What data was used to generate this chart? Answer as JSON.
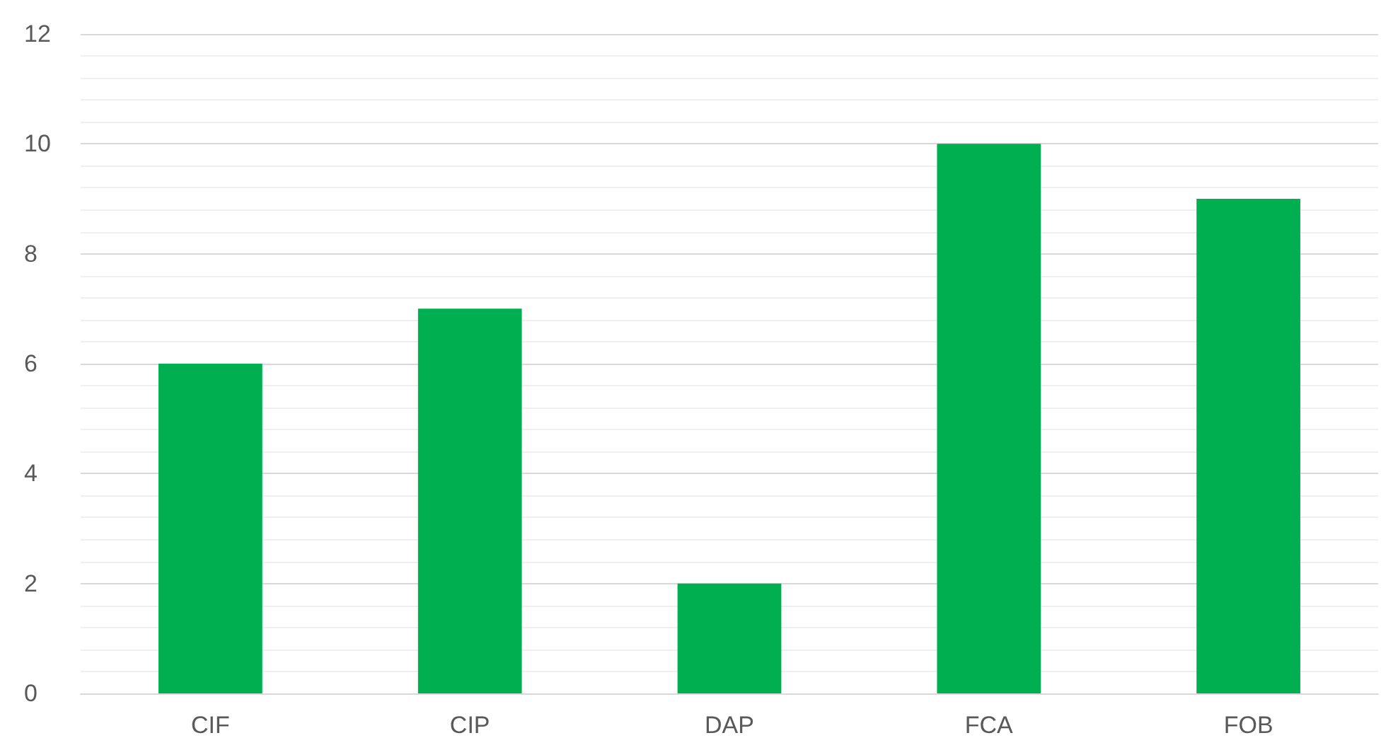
{
  "chart_data": {
    "type": "bar",
    "categories": [
      "CIF",
      "CIP",
      "DAP",
      "FCA",
      "FOB"
    ],
    "values": [
      6,
      7,
      2,
      10,
      9
    ],
    "color": "#00b050",
    "ylim": [
      0,
      12
    ],
    "yticks": [
      0,
      2,
      4,
      6,
      8,
      10,
      12
    ],
    "grid": "y"
  }
}
